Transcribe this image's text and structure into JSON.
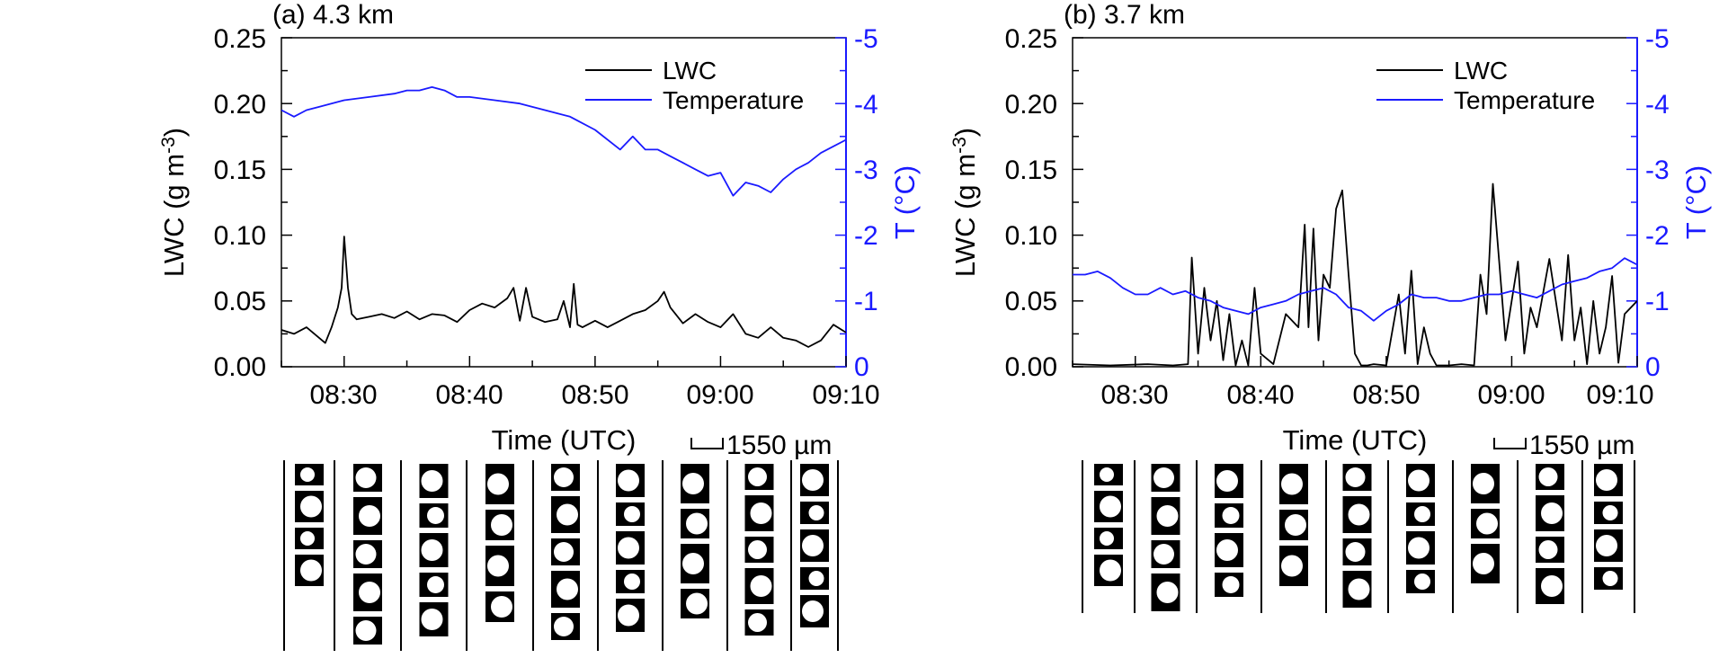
{
  "chart_data": [
    {
      "type": "line",
      "panel_label": "(a) 4.3 km",
      "xlabel": "Time (UTC)",
      "ylabel_left": "LWC (g m",
      "ylabel_left_sup": "-3",
      "ylabel_left_end": ")",
      "ylabel_right": "T (°C)",
      "x_ticks": [
        "08:30",
        "08:40",
        "08:50",
        "09:00",
        "09:10"
      ],
      "x_range_min": [
        25,
        70
      ],
      "y_left_ticks": [
        "0.00",
        "0.05",
        "0.10",
        "0.15",
        "0.20",
        "0.25"
      ],
      "y_left_range": [
        0,
        0.25
      ],
      "y_right_ticks": [
        "0",
        "-1",
        "-2",
        "-3",
        "-4",
        "-5"
      ],
      "y_right_range": [
        0,
        -5
      ],
      "legend": [
        "LWC",
        "Temperature"
      ],
      "legend_position": "top-right",
      "colors": {
        "lwc": "#000000",
        "temperature": "#1a1aff",
        "right_axis": "#1a1aff"
      },
      "scale_bar_label": "1550 µm",
      "series": [
        {
          "name": "LWC",
          "axis": "left",
          "x": [
            25,
            26,
            27,
            28,
            28.5,
            29,
            29.5,
            29.8,
            30,
            30.3,
            30.6,
            31,
            32,
            33,
            34,
            35,
            36,
            37,
            38,
            39,
            40,
            41,
            42,
            43,
            43.5,
            44,
            44.5,
            45,
            46,
            47,
            47.5,
            48,
            48.3,
            48.6,
            49,
            50,
            51,
            52,
            53,
            54,
            55,
            55.5,
            56,
            57,
            58,
            59,
            60,
            61,
            62,
            63,
            64,
            65,
            66,
            67,
            68,
            69,
            70
          ],
          "y": [
            0.028,
            0.025,
            0.03,
            0.022,
            0.018,
            0.03,
            0.045,
            0.06,
            0.099,
            0.06,
            0.04,
            0.036,
            0.038,
            0.04,
            0.037,
            0.042,
            0.036,
            0.04,
            0.039,
            0.034,
            0.043,
            0.048,
            0.045,
            0.052,
            0.06,
            0.035,
            0.06,
            0.038,
            0.034,
            0.036,
            0.05,
            0.03,
            0.063,
            0.032,
            0.03,
            0.035,
            0.03,
            0.035,
            0.04,
            0.043,
            0.05,
            0.057,
            0.045,
            0.033,
            0.04,
            0.034,
            0.03,
            0.04,
            0.025,
            0.022,
            0.03,
            0.022,
            0.02,
            0.015,
            0.02,
            0.032,
            0.026
          ]
        },
        {
          "name": "Temperature",
          "axis": "right",
          "x": [
            25,
            26,
            27,
            28,
            30,
            32,
            34,
            35,
            36,
            37,
            38,
            39,
            40,
            42,
            44,
            45,
            46,
            48,
            50,
            52,
            53,
            54,
            55,
            56,
            57,
            58,
            59,
            60,
            61,
            62,
            63,
            64,
            65,
            66,
            67,
            68,
            69,
            70
          ],
          "y": [
            -3.9,
            -3.8,
            -3.9,
            -3.95,
            -4.05,
            -4.1,
            -4.15,
            -4.2,
            -4.2,
            -4.25,
            -4.2,
            -4.1,
            -4.1,
            -4.05,
            -4.0,
            -3.95,
            -3.9,
            -3.8,
            -3.6,
            -3.3,
            -3.5,
            -3.3,
            -3.3,
            -3.2,
            -3.1,
            -3.0,
            -2.9,
            -2.95,
            -2.6,
            -2.8,
            -2.75,
            -2.65,
            -2.85,
            -3.0,
            -3.1,
            -3.25,
            -3.35,
            -3.45
          ]
        }
      ]
    },
    {
      "type": "line",
      "panel_label": "(b) 3.7 km",
      "xlabel": "Time (UTC)",
      "ylabel_left": "LWC (g m",
      "ylabel_left_sup": "-3",
      "ylabel_left_end": ")",
      "ylabel_right": "T (°C)",
      "x_ticks": [
        "08:30",
        "08:40",
        "08:50",
        "09:00",
        "09:10"
      ],
      "x_range_min": [
        25,
        70
      ],
      "y_left_ticks": [
        "0.00",
        "0.05",
        "0.10",
        "0.15",
        "0.20",
        "0.25"
      ],
      "y_left_range": [
        0,
        0.25
      ],
      "y_right_ticks": [
        "0",
        "-1",
        "-2",
        "-3",
        "-4",
        "-5"
      ],
      "y_right_range": [
        0,
        -5
      ],
      "legend": [
        "LWC",
        "Temperature"
      ],
      "legend_position": "top-right",
      "colors": {
        "lwc": "#000000",
        "temperature": "#1a1aff",
        "right_axis": "#1a1aff"
      },
      "scale_bar_label": "1550 µm",
      "series": [
        {
          "name": "LWC",
          "axis": "left",
          "x": [
            25,
            28,
            31,
            33,
            34.2,
            34.5,
            35,
            35.5,
            36,
            36.5,
            37,
            37.5,
            38,
            38.5,
            39,
            39.5,
            40,
            41,
            42,
            43,
            43.5,
            43.8,
            44.2,
            44.6,
            45,
            45.5,
            46,
            46.5,
            47,
            47.5,
            48,
            48.5,
            49,
            50,
            51,
            51.5,
            52,
            52.5,
            53,
            53.5,
            54,
            55,
            56,
            57,
            57.5,
            58,
            58.5,
            59,
            59.5,
            60,
            60.5,
            61,
            61.5,
            62,
            63,
            64,
            64.5,
            65,
            65.5,
            66,
            66.5,
            67,
            67.5,
            68,
            68.5,
            69,
            70
          ],
          "y": [
            0.002,
            0.001,
            0.002,
            0.001,
            0.002,
            0.083,
            0.01,
            0.06,
            0.02,
            0.05,
            0.005,
            0.04,
            0.001,
            0.02,
            0.001,
            0.06,
            0.01,
            0.002,
            0.04,
            0.03,
            0.108,
            0.03,
            0.105,
            0.02,
            0.07,
            0.06,
            0.12,
            0.134,
            0.07,
            0.01,
            0.001,
            0.001,
            0.002,
            0.001,
            0.055,
            0.01,
            0.073,
            0.002,
            0.03,
            0.01,
            0.001,
            0.001,
            0.002,
            0.001,
            0.07,
            0.04,
            0.139,
            0.08,
            0.02,
            0.05,
            0.08,
            0.01,
            0.045,
            0.03,
            0.082,
            0.02,
            0.085,
            0.02,
            0.045,
            0.002,
            0.05,
            0.01,
            0.03,
            0.069,
            0.003,
            0.04,
            0.05
          ]
        },
        {
          "name": "Temperature",
          "axis": "right",
          "x": [
            25,
            26,
            27,
            28,
            29,
            30,
            31,
            32,
            33,
            34,
            35,
            36,
            37,
            38,
            39,
            40,
            41,
            42,
            43,
            44,
            45,
            46,
            47,
            48,
            49,
            50,
            51,
            52,
            53,
            54,
            55,
            56,
            57,
            58,
            59,
            60,
            61,
            62,
            63,
            64,
            65,
            66,
            67,
            68,
            69,
            70
          ],
          "y": [
            -1.4,
            -1.4,
            -1.45,
            -1.35,
            -1.2,
            -1.1,
            -1.1,
            -1.2,
            -1.1,
            -1.15,
            -1.05,
            -1.0,
            -0.9,
            -0.85,
            -0.8,
            -0.9,
            -0.95,
            -1.0,
            -1.1,
            -1.15,
            -1.2,
            -1.1,
            -0.9,
            -0.85,
            -0.7,
            -0.85,
            -0.95,
            -1.1,
            -1.05,
            -1.05,
            -1.0,
            -1.0,
            -1.05,
            -1.1,
            -1.1,
            -1.15,
            -1.1,
            -1.05,
            -1.15,
            -1.25,
            -1.3,
            -1.35,
            -1.45,
            -1.5,
            -1.65,
            -1.55
          ]
        }
      ]
    }
  ]
}
